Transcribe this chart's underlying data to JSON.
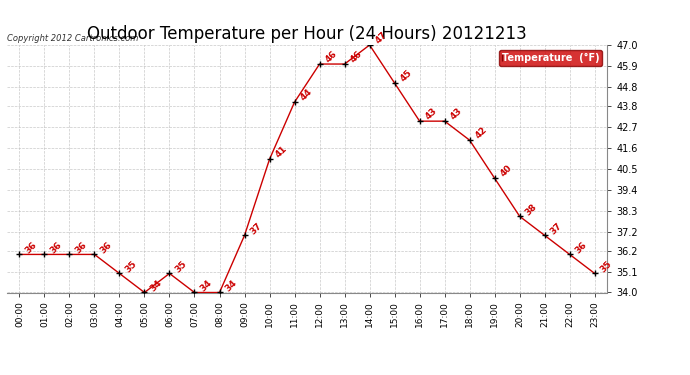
{
  "title": "Outdoor Temperature per Hour (24 Hours) 20121213",
  "copyright": "Copyright 2012 Cartronics.com",
  "legend_label": "Temperature  (°F)",
  "hours": [
    0,
    1,
    2,
    3,
    4,
    5,
    6,
    7,
    8,
    9,
    10,
    11,
    12,
    13,
    14,
    15,
    16,
    17,
    18,
    19,
    20,
    21,
    22,
    23
  ],
  "hour_labels": [
    "00:00",
    "01:00",
    "02:00",
    "03:00",
    "04:00",
    "05:00",
    "06:00",
    "07:00",
    "08:00",
    "09:00",
    "10:00",
    "11:00",
    "12:00",
    "13:00",
    "14:00",
    "15:00",
    "16:00",
    "17:00",
    "18:00",
    "19:00",
    "20:00",
    "21:00",
    "22:00",
    "23:00"
  ],
  "temps": [
    36,
    36,
    36,
    36,
    35,
    34,
    35,
    34,
    34,
    37,
    41,
    44,
    46,
    46,
    47,
    45,
    43,
    43,
    42,
    40,
    38,
    37,
    36,
    35
  ],
  "ylim": [
    34.0,
    47.0
  ],
  "yticks": [
    34.0,
    35.1,
    36.2,
    37.2,
    38.3,
    39.4,
    40.5,
    41.6,
    42.7,
    43.8,
    44.8,
    45.9,
    47.0
  ],
  "line_color": "#cc0000",
  "marker_color": "#000000",
  "bg_color": "#ffffff",
  "grid_color": "#bbbbbb",
  "title_fontsize": 12,
  "annotation_fontsize": 6.5,
  "legend_bg": "#cc0000",
  "legend_fg": "#ffffff"
}
